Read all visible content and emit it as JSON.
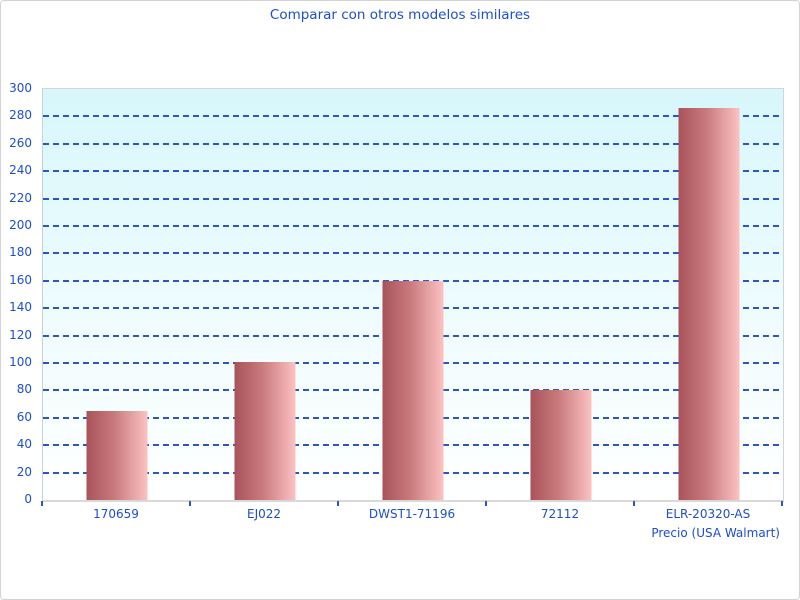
{
  "title": "Comparar con otros modelos similares",
  "x_axis_title": "Precio (USA Walmart)",
  "colors": {
    "text_blue": "#1d4ed0",
    "gridline_blue": "#2d56c5",
    "plot_bg_top": "#d7f7fb",
    "plot_bg_bottom": "#ffffff",
    "bar_gradient_left": "#a8535a",
    "bar_gradient_right": "#fcc2c2",
    "axis_line_gray": "#d9d9d9",
    "frame_border": "#d3d3d3"
  },
  "chart_data": {
    "type": "bar",
    "title": "Comparar con otros modelos similares",
    "categories": [
      "170659",
      "EJ022",
      "DWST1-71196",
      "72112",
      "ELR-20320-AS"
    ],
    "values": [
      65,
      101,
      160,
      80,
      286
    ],
    "xlabel": "Precio (USA Walmart)",
    "ylabel": "",
    "ylim": [
      0,
      300
    ],
    "ytick_step": 20,
    "yticks": [
      0,
      20,
      40,
      60,
      80,
      100,
      120,
      140,
      160,
      180,
      200,
      220,
      240,
      260,
      280,
      300
    ],
    "grid": "horizontal-dashed",
    "legend": "none",
    "bar_orientation": "vertical"
  }
}
